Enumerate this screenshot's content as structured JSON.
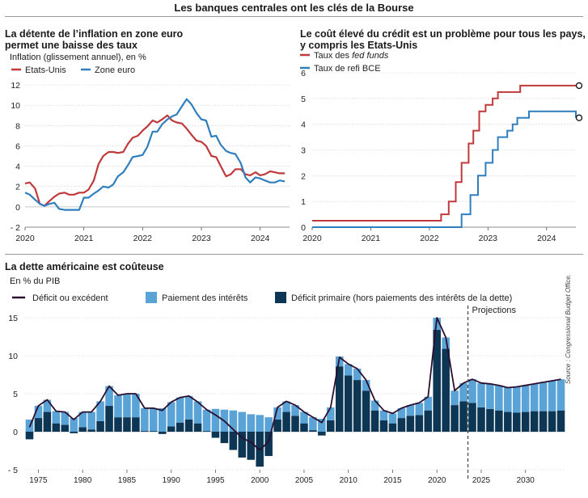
{
  "main_title": "Les banques centrales ont les clés de la Bourse",
  "panel1": {
    "title_line1": "La détente de l’inflation en zone euro",
    "title_line2": "permet une baisse des taux",
    "subtitle": "Inflation (glissement annuel), en %"
  },
  "panel2": {
    "title_line1": "Le coût élevé du crédit est un problème pour tous les pays,",
    "title_line2": "y compris les Etats-Unis"
  },
  "panel3": {
    "title": "La dette américaine est coûteuse",
    "subtitle": "En % du PIB",
    "projection_label": "Projections",
    "source": "Source : Congressional Budget Office."
  },
  "colors": {
    "red": "#c0393b",
    "blue": "#2f7fbf",
    "light_blue": "#5aa3d6",
    "navy": "#0d3554",
    "deficit_line": "#2a0f2e"
  },
  "chart_data": [
    {
      "type": "line",
      "title": "La détente de l’inflation en zone euro permet une baisse des taux",
      "ylabel": "Inflation (glissement annuel), en %",
      "xlim": [
        2020,
        2024.5
      ],
      "ylim": [
        -2,
        12
      ],
      "yticks": [
        -2,
        0,
        2,
        4,
        6,
        8,
        10,
        12
      ],
      "xticks": [
        2020,
        2021,
        2022,
        2023,
        2024
      ],
      "legend_position": "top-left",
      "series": [
        {
          "name": "Etats-Unis",
          "color": "#c0393b",
          "x": [
            2020.0,
            2020.08,
            2020.17,
            2020.25,
            2020.33,
            2020.42,
            2020.5,
            2020.58,
            2020.67,
            2020.75,
            2020.83,
            2020.92,
            2021.0,
            2021.08,
            2021.17,
            2021.25,
            2021.33,
            2021.42,
            2021.5,
            2021.58,
            2021.67,
            2021.75,
            2021.83,
            2021.92,
            2022.0,
            2022.08,
            2022.17,
            2022.25,
            2022.33,
            2022.42,
            2022.5,
            2022.58,
            2022.67,
            2022.75,
            2022.83,
            2022.92,
            2023.0,
            2023.08,
            2023.17,
            2023.25,
            2023.33,
            2023.42,
            2023.5,
            2023.58,
            2023.67,
            2023.75,
            2023.83,
            2023.92,
            2024.0,
            2024.08,
            2024.17,
            2024.25,
            2024.33,
            2024.42
          ],
          "y": [
            2.3,
            2.4,
            1.8,
            0.3,
            0.1,
            0.6,
            1.0,
            1.3,
            1.4,
            1.2,
            1.2,
            1.4,
            1.4,
            1.7,
            2.6,
            4.2,
            5.0,
            5.4,
            5.4,
            5.3,
            5.4,
            6.2,
            6.8,
            7.0,
            7.5,
            7.9,
            8.5,
            8.3,
            8.6,
            9.0,
            8.5,
            8.3,
            8.2,
            7.7,
            7.1,
            6.5,
            6.4,
            6.0,
            5.0,
            4.9,
            4.0,
            3.0,
            3.2,
            3.7,
            3.7,
            3.2,
            3.1,
            3.4,
            3.1,
            3.2,
            3.5,
            3.4,
            3.3,
            3.3
          ]
        },
        {
          "name": "Zone euro",
          "color": "#2f7fbf",
          "x": [
            2020.0,
            2020.08,
            2020.17,
            2020.25,
            2020.33,
            2020.42,
            2020.5,
            2020.58,
            2020.67,
            2020.75,
            2020.83,
            2020.92,
            2021.0,
            2021.08,
            2021.17,
            2021.25,
            2021.33,
            2021.42,
            2021.5,
            2021.58,
            2021.67,
            2021.75,
            2021.83,
            2021.92,
            2022.0,
            2022.08,
            2022.17,
            2022.25,
            2022.33,
            2022.42,
            2022.5,
            2022.58,
            2022.67,
            2022.75,
            2022.83,
            2022.92,
            2023.0,
            2023.08,
            2023.17,
            2023.25,
            2023.33,
            2023.42,
            2023.5,
            2023.58,
            2023.67,
            2023.75,
            2023.83,
            2023.92,
            2024.0,
            2024.08,
            2024.17,
            2024.25,
            2024.33,
            2024.42
          ],
          "y": [
            1.4,
            1.2,
            0.7,
            0.3,
            0.1,
            0.3,
            0.4,
            -0.2,
            -0.3,
            -0.3,
            -0.3,
            -0.3,
            0.9,
            0.9,
            1.3,
            1.6,
            2.0,
            1.9,
            2.2,
            3.0,
            3.4,
            4.1,
            4.9,
            5.0,
            5.1,
            5.9,
            7.4,
            7.4,
            8.1,
            8.6,
            8.9,
            9.1,
            9.9,
            10.6,
            10.1,
            9.2,
            8.6,
            8.5,
            6.9,
            7.0,
            6.1,
            5.5,
            5.3,
            5.2,
            4.3,
            2.9,
            2.4,
            2.9,
            2.8,
            2.6,
            2.4,
            2.4,
            2.6,
            2.5
          ]
        }
      ]
    },
    {
      "type": "line",
      "title": "Le coût élevé du crédit est un problème pour tous les pays, y compris les Etats-Unis",
      "xlim": [
        2020,
        2024.5
      ],
      "ylim": [
        0,
        6
      ],
      "yticks": [
        0,
        1,
        2,
        3,
        4,
        5,
        6
      ],
      "xticks": [
        2020,
        2021,
        2022,
        2023,
        2024
      ],
      "legend_position": "top-left",
      "series": [
        {
          "name": "Taux des fed funds",
          "name_prefix": "Taux des ",
          "name_italic": "fed funds",
          "color": "#c0393b",
          "step": true,
          "x": [
            2020.0,
            2022.2,
            2022.33,
            2022.45,
            2022.55,
            2022.67,
            2022.75,
            2022.85,
            2022.96,
            2023.08,
            2023.17,
            2023.33,
            2023.55,
            2024.5
          ],
          "y": [
            0.25,
            0.5,
            1.0,
            1.75,
            2.5,
            3.25,
            3.75,
            4.5,
            4.75,
            5.0,
            5.25,
            5.25,
            5.5,
            5.5
          ]
        },
        {
          "name": "Taux de refi BCE",
          "color": "#2f7fbf",
          "step": true,
          "x": [
            2020.0,
            2022.55,
            2022.7,
            2022.83,
            2022.96,
            2023.08,
            2023.17,
            2023.33,
            2023.42,
            2023.5,
            2023.58,
            2023.7,
            2024.42,
            2024.5
          ],
          "y": [
            0,
            0.5,
            1.25,
            2.0,
            2.5,
            3.0,
            3.5,
            3.75,
            4.0,
            4.25,
            4.25,
            4.5,
            4.5,
            4.25
          ]
        }
      ]
    },
    {
      "type": "bar",
      "title": "La dette américaine est coûteuse",
      "ylabel": "En % du PIB",
      "ylim": [
        -5,
        15
      ],
      "yticks": [
        -5,
        0,
        5,
        10,
        15
      ],
      "xticks": [
        1975,
        1980,
        1985,
        1990,
        1995,
        2000,
        2005,
        2010,
        2015,
        2020,
        2025,
        2030
      ],
      "projection_start": 2023.5,
      "legend_position": "top",
      "legend": [
        "Déficit ou excédent",
        "Paiement des intérêts",
        "Déficit primaire (hors paiements des intérêts de la dette)"
      ],
      "categories": [
        1974,
        1975,
        1976,
        1977,
        1978,
        1979,
        1980,
        1981,
        1982,
        1983,
        1984,
        1985,
        1986,
        1987,
        1988,
        1989,
        1990,
        1991,
        1992,
        1993,
        1994,
        1995,
        1996,
        1997,
        1998,
        1999,
        2000,
        2001,
        2002,
        2003,
        2004,
        2005,
        2006,
        2007,
        2008,
        2009,
        2010,
        2011,
        2012,
        2013,
        2014,
        2015,
        2016,
        2017,
        2018,
        2019,
        2020,
        2021,
        2022,
        2023,
        2024,
        2025,
        2026,
        2027,
        2028,
        2029,
        2030,
        2031,
        2032,
        2033,
        2034
      ],
      "series": [
        {
          "name": "Paiement des intérêts",
          "color": "#5aa3d6",
          "values": [
            1.6,
            1.6,
            1.6,
            1.6,
            1.7,
            1.8,
            2.0,
            2.3,
            2.6,
            2.6,
            2.9,
            3.1,
            3.1,
            3.0,
            3.0,
            3.1,
            3.2,
            3.3,
            3.1,
            2.9,
            2.8,
            3.0,
            2.9,
            2.8,
            2.6,
            2.3,
            2.2,
            1.9,
            1.6,
            1.4,
            1.4,
            1.5,
            1.7,
            1.7,
            1.7,
            1.3,
            1.5,
            1.5,
            1.4,
            1.3,
            1.3,
            1.3,
            1.3,
            1.4,
            1.6,
            1.8,
            1.6,
            1.5,
            1.9,
            2.4,
            3.1,
            3.2,
            3.3,
            3.3,
            3.2,
            3.4,
            3.5,
            3.6,
            3.8,
            4.0,
            4.1
          ]
        },
        {
          "name": "Déficit primaire (hors paiements des intérêts de la dette)",
          "color": "#0d3554",
          "values": [
            -1.0,
            1.8,
            2.6,
            1.1,
            0.9,
            -0.2,
            0.6,
            0.3,
            1.4,
            3.4,
            1.9,
            1.9,
            1.9,
            0.1,
            0.1,
            -0.3,
            0.7,
            1.2,
            1.6,
            1.1,
            0.1,
            -0.8,
            -1.5,
            -2.4,
            -3.4,
            -3.7,
            -4.6,
            -3.2,
            1.6,
            2.6,
            2.1,
            1.1,
            0.2,
            -0.5,
            1.5,
            8.6,
            7.4,
            6.8,
            5.4,
            2.8,
            1.5,
            1.1,
            1.8,
            2.1,
            2.2,
            2.8,
            13.4,
            10.9,
            3.5,
            4.0,
            3.8,
            3.2,
            3.0,
            2.8,
            2.6,
            2.5,
            2.6,
            2.7,
            2.7,
            2.7,
            2.8
          ]
        },
        {
          "name": "Déficit ou excédent",
          "color": "#2a0f2e",
          "type": "line",
          "values": [
            0.6,
            3.4,
            4.2,
            2.7,
            2.6,
            1.6,
            2.6,
            2.6,
            4.0,
            6.0,
            4.8,
            5.0,
            5.0,
            3.1,
            3.1,
            2.8,
            3.9,
            4.5,
            4.7,
            3.9,
            2.9,
            2.2,
            1.4,
            0.3,
            -0.8,
            -1.4,
            -2.4,
            -1.3,
            3.2,
            4.0,
            3.5,
            2.6,
            1.9,
            1.2,
            3.2,
            9.8,
            8.9,
            8.3,
            6.8,
            4.1,
            2.8,
            2.4,
            3.1,
            3.5,
            3.8,
            4.6,
            15.0,
            12.4,
            5.4,
            6.4,
            6.9,
            6.4,
            6.3,
            6.1,
            5.8,
            5.9,
            6.1,
            6.3,
            6.5,
            6.7,
            6.9
          ]
        }
      ]
    }
  ]
}
